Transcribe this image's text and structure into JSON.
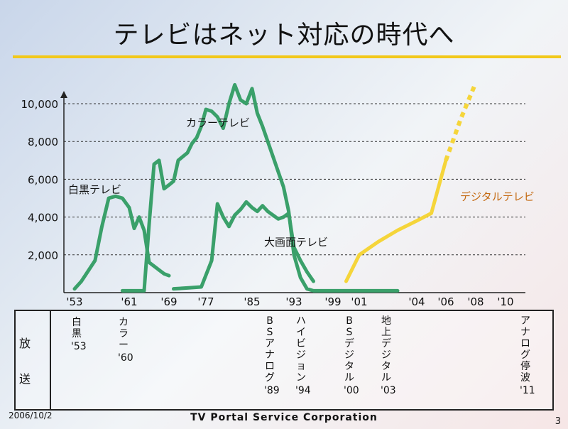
{
  "slide": {
    "title": "テレビはネット対応の時代へ",
    "date": "2006/10/2",
    "company": "TV Portal Service Corporation",
    "page_number": "3"
  },
  "colors": {
    "green": "#3aa06a",
    "yellow": "#f5d53a",
    "title_rule": "#f2c81a"
  },
  "chart_data": {
    "type": "line",
    "y_ticks": [
      "2,000",
      "4,000",
      "6,000",
      "8,000",
      "10,000"
    ],
    "ylim": [
      0,
      11500
    ],
    "x_ticks": [
      "'53",
      "'61",
      "'69",
      "'77",
      "'85",
      "'93",
      "'99",
      "'01",
      "'04",
      "'06",
      "'08",
      "'10"
    ],
    "x_tick_years": [
      1953,
      1961,
      1969,
      1977,
      1985,
      1993,
      1999,
      2001,
      2004,
      2006,
      2008,
      2010
    ],
    "grid_lines": [
      2000,
      4000,
      6000,
      8000,
      10000
    ],
    "series": [
      {
        "name": "白黒テレビ",
        "color": "#3aa06a",
        "x": [
          1953,
          1954,
          1956,
          1957,
          1958,
          1959,
          1960,
          1961,
          1962,
          1963,
          1964,
          1965,
          1966,
          1967,
          1968,
          1969
        ],
        "y": [
          200,
          600,
          1700,
          3500,
          5000,
          5100,
          5000,
          4500,
          3400,
          4000,
          3300,
          1600,
          1400,
          1200,
          1000,
          900
        ]
      },
      {
        "name": "カラーテレビ",
        "color": "#3aa06a",
        "x": [
          1960,
          1962,
          1964,
          1965,
          1966,
          1967,
          1968,
          1969,
          1970,
          1971,
          1972,
          1973,
          1974,
          1975,
          1976,
          1977,
          1978,
          1979,
          1980,
          1981,
          1982,
          1983,
          1984,
          1985,
          1986,
          1987,
          1988,
          1989,
          1990,
          1991,
          1992,
          1993,
          1994,
          1995,
          1996,
          1997,
          1998,
          1999,
          2000,
          2001,
          2002,
          2003
        ],
        "y": [
          100,
          100,
          100,
          3600,
          6800,
          7000,
          5500,
          5700,
          5900,
          7000,
          7200,
          7400,
          7900,
          8200,
          8800,
          9700,
          9600,
          9300,
          8700,
          10000,
          11000,
          10200,
          10000,
          10800,
          9500,
          8800,
          8000,
          7200,
          6400,
          5600,
          4300,
          2000,
          800,
          200,
          100,
          100,
          100,
          100,
          100,
          100,
          100,
          100
        ]
      },
      {
        "name": "大画面テレビ",
        "color": "#3aa06a",
        "x": [
          1970,
          1973,
          1976,
          1978,
          1979,
          1980,
          1981,
          1982,
          1983,
          1984,
          1985,
          1986,
          1987,
          1988,
          1989,
          1990,
          1991,
          1992,
          1993,
          1994,
          1995,
          1996
        ],
        "y": [
          200,
          250,
          300,
          1700,
          4700,
          4000,
          3500,
          4100,
          4400,
          4800,
          4500,
          4300,
          4600,
          4300,
          4100,
          3900,
          4000,
          4200,
          2400,
          1700,
          1100,
          600
        ]
      },
      {
        "name": "デジタルテレビ",
        "color": "#f5d53a",
        "x": [
          2000,
          2001,
          2002,
          2003,
          2004,
          2005,
          2006,
          2007,
          2008
        ],
        "y": [
          600,
          2000,
          2700,
          3300,
          3800,
          4200,
          7000,
          9200,
          11100
        ],
        "projected_from_x": 2006
      }
    ],
    "series_labels": [
      "白黒テレビ",
      "カラーテレビ",
      "大画面テレビ",
      "デジタルテレビ"
    ]
  },
  "events": {
    "category": "放送",
    "category_chars": [
      "放",
      "送"
    ],
    "items": [
      {
        "text": "白黒",
        "year": "'53"
      },
      {
        "text": "カラー",
        "year": "'60"
      },
      {
        "text": "BSアナログ",
        "year": "'89"
      },
      {
        "text": "ハイビジョン",
        "year": "'94"
      },
      {
        "text": "BSデジタル",
        "year": "'00"
      },
      {
        "text": "地上デジタル",
        "year": "'03"
      },
      {
        "text": "アナログ停波",
        "year": "'11"
      }
    ]
  }
}
